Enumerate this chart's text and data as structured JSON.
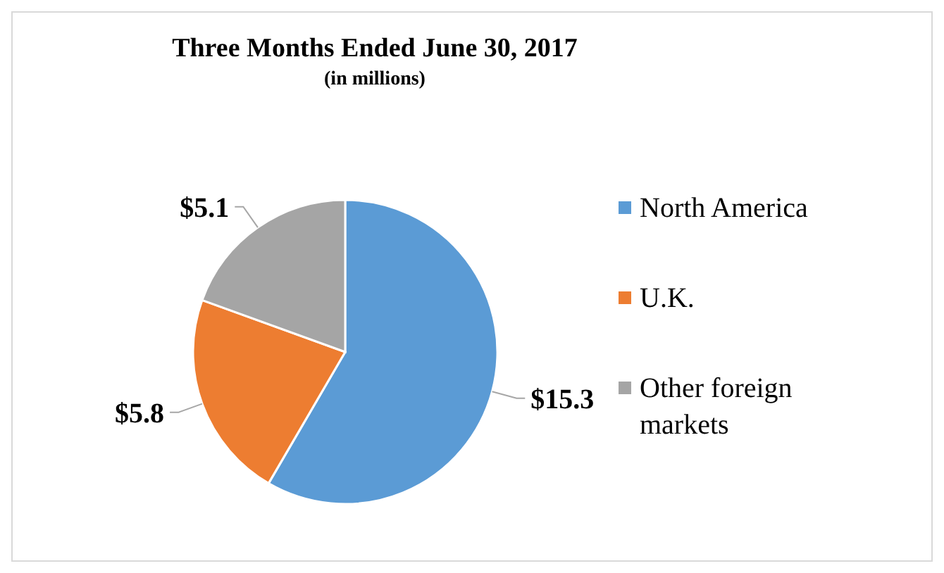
{
  "chart_data": {
    "type": "pie",
    "title": "Three Months Ended June 30, 2017",
    "subtitle": "(in millions)",
    "categories": [
      "North America",
      "U.K.",
      "Other foreign markets"
    ],
    "values": [
      15.3,
      5.8,
      5.1
    ],
    "colors": [
      "#5b9bd5",
      "#ed7d31",
      "#a5a5a5"
    ],
    "value_labels": [
      "$15.3",
      "$5.8",
      "$5.1"
    ],
    "legend": "right"
  }
}
